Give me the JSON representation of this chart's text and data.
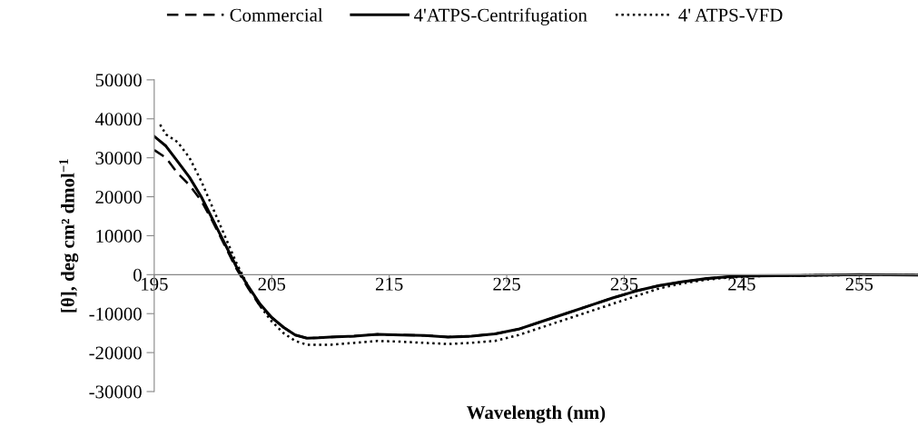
{
  "chart_data": {
    "type": "line",
    "xlabel": "Wavelength (nm)",
    "ylabel": "[θ], deg cm² dmol$^{−1}$",
    "xlim": [
      195,
      260
    ],
    "xticks": [
      195,
      205,
      215,
      225,
      235,
      245,
      255
    ],
    "ylim": [
      -30000,
      50000
    ],
    "yticks": [
      -30000,
      -20000,
      -10000,
      0,
      10000,
      20000,
      30000,
      40000,
      50000
    ],
    "grid": false,
    "legend": "top",
    "marker": "none",
    "series": [
      {
        "name": "Commercial",
        "color": "#000000",
        "line_style": "dashed",
        "x": [
          195,
          196,
          197,
          198,
          199,
          200,
          201,
          202,
          203,
          204,
          205,
          206,
          207,
          208,
          209,
          210,
          212,
          214,
          216,
          218,
          220,
          222,
          224,
          226,
          228,
          230,
          232,
          234,
          236,
          238,
          240,
          242,
          244,
          246,
          250,
          255,
          260
        ],
        "values": [
          32000,
          30000,
          26000,
          23000,
          19000,
          13500,
          7500,
          1500,
          -3500,
          -8000,
          -11000,
          -13500,
          -15500,
          -16300,
          -16200,
          -16000,
          -15800,
          -15300,
          -15500,
          -15600,
          -16000,
          -15800,
          -15200,
          -14000,
          -12000,
          -10000,
          -8000,
          -6000,
          -4200,
          -2800,
          -1800,
          -1000,
          -500,
          -300,
          -200,
          0,
          -100
        ]
      },
      {
        "name": "4'ATPS-Centrifugation",
        "color": "#000000",
        "line_style": "solid",
        "x": [
          195,
          196,
          197,
          198,
          199,
          200,
          201,
          202,
          203,
          204,
          205,
          206,
          207,
          208,
          209,
          210,
          212,
          214,
          216,
          218,
          220,
          222,
          224,
          226,
          228,
          230,
          232,
          234,
          236,
          238,
          240,
          242,
          244,
          246,
          250,
          255,
          260
        ],
        "values": [
          35500,
          33000,
          29000,
          25000,
          20000,
          14000,
          8000,
          2000,
          -3000,
          -7500,
          -11000,
          -13500,
          -15500,
          -16300,
          -16200,
          -16000,
          -15800,
          -15300,
          -15500,
          -15600,
          -16000,
          -15800,
          -15200,
          -14000,
          -12000,
          -10000,
          -8000,
          -6000,
          -4200,
          -2800,
          -1800,
          -1000,
          -500,
          -300,
          -200,
          0,
          -100
        ]
      },
      {
        "name": "4' ATPS-VFD",
        "color": "#000000",
        "line_style": "dotted",
        "x": [
          195.5,
          196,
          197,
          198,
          199,
          200,
          201,
          202,
          203,
          204,
          205,
          206,
          207,
          208,
          210,
          212,
          214,
          216,
          218,
          220,
          222,
          224,
          226,
          228,
          230,
          232,
          234,
          236,
          238,
          240,
          242,
          244,
          246,
          250,
          255,
          260
        ],
        "values": [
          38500,
          36000,
          34000,
          30000,
          24000,
          17000,
          10000,
          3000,
          -3000,
          -8000,
          -12000,
          -15000,
          -17000,
          -18000,
          -18000,
          -17500,
          -17000,
          -17200,
          -17500,
          -17800,
          -17500,
          -17000,
          -15500,
          -13500,
          -11500,
          -9500,
          -7500,
          -5500,
          -3500,
          -2200,
          -1300,
          -700,
          -400,
          -200,
          -100,
          -100
        ]
      }
    ]
  }
}
